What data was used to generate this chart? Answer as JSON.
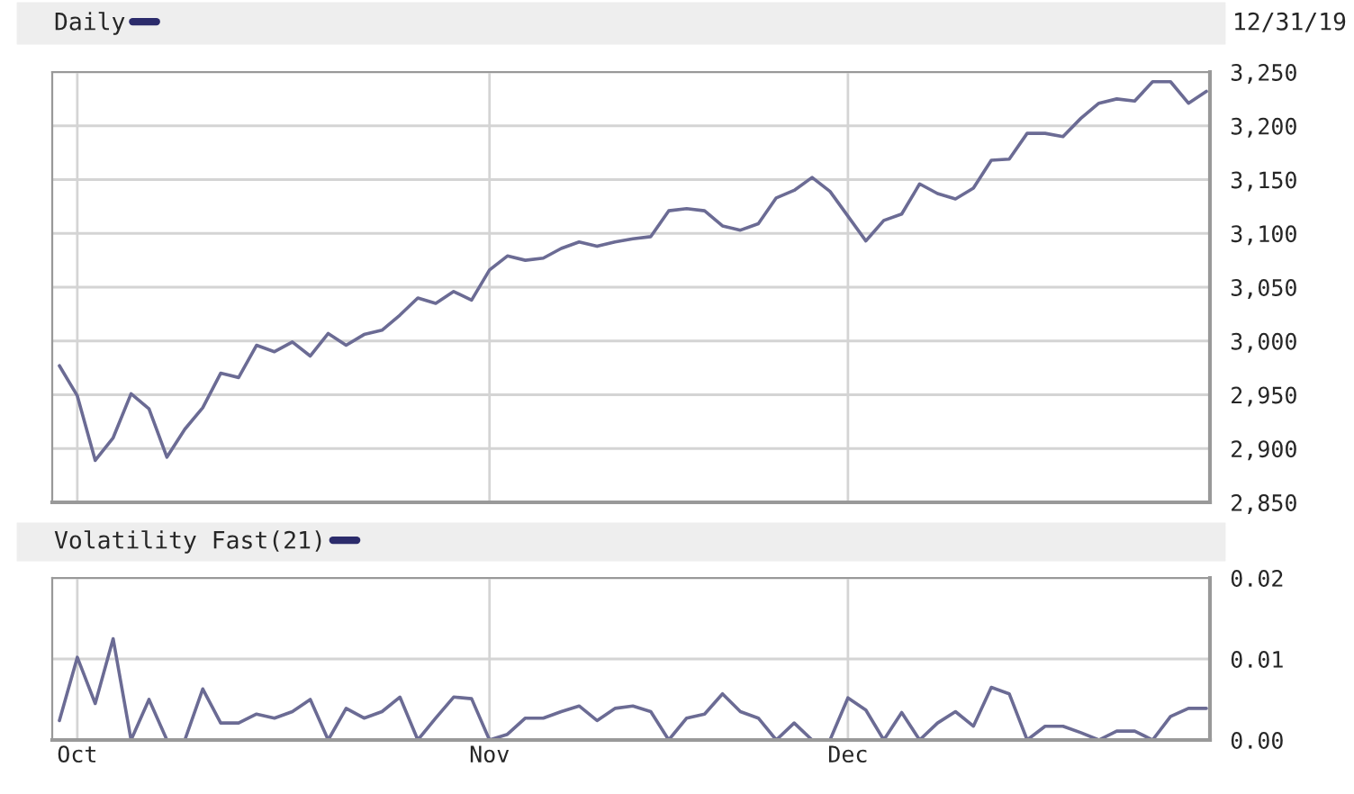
{
  "chart_data": [
    {
      "type": "line",
      "categories": [
        null,
        null,
        null,
        null,
        null,
        null,
        null,
        null,
        null,
        null,
        null,
        null,
        null,
        null,
        null,
        null,
        null,
        null,
        null,
        null,
        null,
        null,
        null,
        null,
        null,
        null,
        null,
        null,
        null,
        null,
        null,
        null,
        null,
        null,
        null,
        null,
        null,
        null,
        null,
        null,
        null,
        null,
        null,
        null,
        null,
        null,
        null,
        null,
        null,
        null,
        null,
        null,
        null,
        null,
        null,
        null,
        null,
        null,
        null,
        null,
        null,
        null,
        null,
        null,
        null
      ],
      "series": [
        {
          "name": "Daily",
          "color": "#6b6b94",
          "values": [
            2977,
            2949,
            2889,
            2910,
            2951,
            2937,
            2892,
            2918,
            2938,
            2970,
            2966,
            2996,
            2990,
            2999,
            2986,
            3007,
            2996,
            3006,
            3010,
            3024,
            3040,
            3035,
            3046,
            3038,
            3066,
            3079,
            3075,
            3077,
            3086,
            3092,
            3088,
            3092,
            3095,
            3097,
            3121,
            3123,
            3121,
            3107,
            3103,
            3109,
            3133,
            3140,
            3152,
            3139,
            3116,
            3093,
            3112,
            3118,
            3146,
            3137,
            3132,
            3142,
            3168,
            3169,
            3193,
            3193,
            3190,
            3207,
            3221,
            3225,
            3223,
            3241,
            3241,
            3221,
            3232
          ]
        }
      ],
      "ylim": [
        2850,
        3250
      ],
      "yticks": [
        {
          "value": 2850,
          "label": "2,850"
        },
        {
          "value": 2900,
          "label": "2,900"
        },
        {
          "value": 2950,
          "label": "2,950"
        },
        {
          "value": 3000,
          "label": "3,000"
        },
        {
          "value": 3050,
          "label": "3,050"
        },
        {
          "value": 3100,
          "label": "3,100"
        },
        {
          "value": 3150,
          "label": "3,150"
        },
        {
          "value": 3200,
          "label": "3,200"
        },
        {
          "value": 3250,
          "label": "3,250"
        }
      ],
      "tick_labels": "y",
      "grid": true,
      "legend": "top left",
      "marker": "none",
      "line_style": "solid",
      "annotations": [
        "12/31/19"
      ]
    },
    {
      "type": "line",
      "categories": [
        null,
        "Oct",
        null,
        null,
        null,
        null,
        null,
        null,
        null,
        null,
        null,
        null,
        null,
        null,
        null,
        null,
        null,
        null,
        null,
        null,
        null,
        null,
        null,
        null,
        "Nov",
        null,
        null,
        null,
        null,
        null,
        null,
        null,
        null,
        null,
        null,
        null,
        null,
        null,
        null,
        null,
        null,
        null,
        null,
        null,
        "Dec",
        null,
        null,
        null,
        null,
        null,
        null,
        null,
        null,
        null,
        null,
        null,
        null,
        null,
        null,
        null,
        null,
        null,
        null,
        null,
        null
      ],
      "series": [
        {
          "name": "Volatility Fast(21)",
          "color": "#6b6b94",
          "values": [
            0.0024,
            0.0102,
            0.0045,
            0.0125,
            0,
            0.005,
            0,
            0,
            0.0063,
            0.0021,
            0.0021,
            0.0032,
            0.0027,
            0.0035,
            0.005,
            0,
            0.0039,
            0.0027,
            0.0035,
            0.0053,
            0,
            0.0027,
            0.0053,
            0.0051,
            0,
            0.0007,
            0.0027,
            0.0027,
            0.0035,
            0.0042,
            0.0024,
            0.0039,
            0.0042,
            0.0035,
            0,
            0.0027,
            0.0032,
            0.0057,
            0.0035,
            0.0027,
            0,
            0.0021,
            0,
            0,
            0.0052,
            0.0037,
            0,
            0.0034,
            0,
            0.0021,
            0.0035,
            0.0017,
            0.0065,
            0.0057,
            0,
            0.0017,
            0.0017,
            0.0009,
            0,
            0.0011,
            0.0011,
            0,
            0.0029,
            0.0039,
            0.0039
          ]
        }
      ],
      "ylim": [
        0,
        0.02
      ],
      "yticks": [
        {
          "value": 0,
          "label": "0.00"
        },
        {
          "value": 0.01,
          "label": "0.01"
        },
        {
          "value": 0.02,
          "label": "0.02"
        }
      ],
      "grid": true,
      "legend": "top left",
      "marker": "none",
      "line_style": "solid"
    }
  ]
}
